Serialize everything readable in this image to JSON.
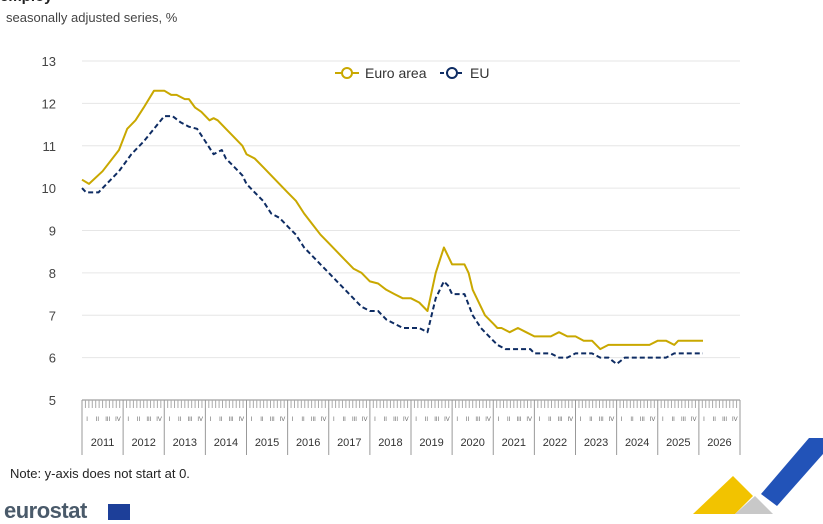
{
  "header": {
    "title_fragment": "employ",
    "subtitle": "seasonally adjusted series, %"
  },
  "note": "Note: y-axis does not start at 0.",
  "logo_text": "eurostat",
  "colors": {
    "euro_area": "#c9a800",
    "eu": "#0e2c63",
    "grid": "#e6e6e6"
  },
  "chart_data": {
    "type": "line",
    "title": "",
    "xlabel": "",
    "ylabel": "",
    "ylim": [
      5,
      13
    ],
    "yticks": [
      5,
      6,
      7,
      8,
      9,
      10,
      11,
      12,
      13
    ],
    "x_range": [
      2011,
      2027
    ],
    "year_labels": [
      "2011",
      "2012",
      "2013",
      "2014",
      "2015",
      "2016",
      "2017",
      "2018",
      "2019",
      "2020",
      "2021",
      "2022",
      "2023",
      "2024",
      "2025",
      "2026"
    ],
    "quarter_labels": [
      "I",
      "II",
      "III",
      "IV"
    ],
    "legend_position": "top-center",
    "grid": true,
    "series": [
      {
        "name": "Euro area",
        "style": "solid",
        "x": [
          2011.0,
          2011.17,
          2011.5,
          2011.9,
          2012.1,
          2012.3,
          2012.5,
          2012.75,
          2013.0,
          2013.17,
          2013.3,
          2013.5,
          2013.6,
          2013.75,
          2013.9,
          2014.0,
          2014.1,
          2014.2,
          2014.3,
          2014.5,
          2014.7,
          2014.9,
          2015.0,
          2015.2,
          2015.4,
          2015.6,
          2015.8,
          2016.0,
          2016.2,
          2016.4,
          2016.6,
          2016.8,
          2017.0,
          2017.2,
          2017.4,
          2017.6,
          2017.8,
          2018.0,
          2018.2,
          2018.4,
          2018.6,
          2018.8,
          2019.0,
          2019.2,
          2019.4,
          2019.6,
          2019.8,
          2019.9,
          2020.0,
          2020.2,
          2020.3,
          2020.4,
          2020.5,
          2020.6,
          2020.8,
          2021.0,
          2021.1,
          2021.2,
          2021.4,
          2021.6,
          2021.8,
          2022.0,
          2022.2,
          2022.4,
          2022.6,
          2022.8,
          2023.0,
          2023.2,
          2023.4,
          2023.6,
          2023.8,
          2024.0,
          2024.2,
          2024.4,
          2024.6,
          2024.8,
          2025.0,
          2025.2,
          2025.4,
          2025.5,
          2025.7,
          2025.9,
          2026.0,
          2026.1
        ],
        "y": [
          10.2,
          10.1,
          10.4,
          10.9,
          11.4,
          11.6,
          11.9,
          12.3,
          12.3,
          12.2,
          12.2,
          12.1,
          12.1,
          11.9,
          11.8,
          11.7,
          11.6,
          11.65,
          11.6,
          11.4,
          11.2,
          11.0,
          10.8,
          10.7,
          10.5,
          10.3,
          10.1,
          9.9,
          9.7,
          9.4,
          9.15,
          8.9,
          8.7,
          8.5,
          8.3,
          8.1,
          8.0,
          7.8,
          7.75,
          7.6,
          7.5,
          7.4,
          7.4,
          7.3,
          7.1,
          8.0,
          8.6,
          8.4,
          8.2,
          8.2,
          8.2,
          8.0,
          7.6,
          7.4,
          7.0,
          6.8,
          6.7,
          6.7,
          6.6,
          6.7,
          6.6,
          6.5,
          6.5,
          6.5,
          6.6,
          6.5,
          6.5,
          6.4,
          6.4,
          6.2,
          6.3,
          6.3,
          6.3,
          6.3,
          6.3,
          6.3,
          6.4,
          6.4,
          6.3,
          6.4,
          6.4,
          6.4,
          6.4,
          6.4
        ]
      },
      {
        "name": "EU",
        "style": "dashed",
        "x": [
          2011.0,
          2011.1,
          2011.4,
          2011.9,
          2012.2,
          2012.5,
          2012.75,
          2013.0,
          2013.2,
          2013.4,
          2013.6,
          2013.8,
          2014.0,
          2014.2,
          2014.4,
          2014.5,
          2014.7,
          2014.9,
          2015.0,
          2015.2,
          2015.4,
          2015.6,
          2015.8,
          2016.0,
          2016.2,
          2016.4,
          2016.6,
          2016.8,
          2017.0,
          2017.2,
          2017.4,
          2017.6,
          2017.8,
          2018.0,
          2018.2,
          2018.4,
          2018.6,
          2018.8,
          2019.0,
          2019.2,
          2019.4,
          2019.6,
          2019.8,
          2019.9,
          2020.0,
          2020.2,
          2020.3,
          2020.5,
          2020.7,
          2020.9,
          2021.1,
          2021.3,
          2021.5,
          2021.7,
          2021.9,
          2022.0,
          2022.2,
          2022.4,
          2022.6,
          2022.8,
          2023.0,
          2023.2,
          2023.4,
          2023.6,
          2023.8,
          2024.0,
          2024.2,
          2024.4,
          2024.6,
          2024.8,
          2025.0,
          2025.2,
          2025.4,
          2025.6,
          2025.8,
          2026.0,
          2026.1
        ],
        "y": [
          10.0,
          9.9,
          9.9,
          10.4,
          10.8,
          11.1,
          11.4,
          11.7,
          11.7,
          11.55,
          11.45,
          11.4,
          11.1,
          10.8,
          10.9,
          10.7,
          10.5,
          10.3,
          10.1,
          9.9,
          9.7,
          9.4,
          9.3,
          9.1,
          8.9,
          8.6,
          8.4,
          8.2,
          8.0,
          7.8,
          7.6,
          7.4,
          7.2,
          7.1,
          7.1,
          6.9,
          6.8,
          6.7,
          6.7,
          6.7,
          6.6,
          7.4,
          7.8,
          7.7,
          7.5,
          7.5,
          7.5,
          7.0,
          6.7,
          6.5,
          6.3,
          6.2,
          6.2,
          6.2,
          6.2,
          6.1,
          6.1,
          6.1,
          6.0,
          6.0,
          6.1,
          6.1,
          6.1,
          6.0,
          6.0,
          5.85,
          6.0,
          6.0,
          6.0,
          6.0,
          6.0,
          6.0,
          6.1,
          6.1,
          6.1,
          6.1,
          6.1
        ]
      }
    ]
  }
}
